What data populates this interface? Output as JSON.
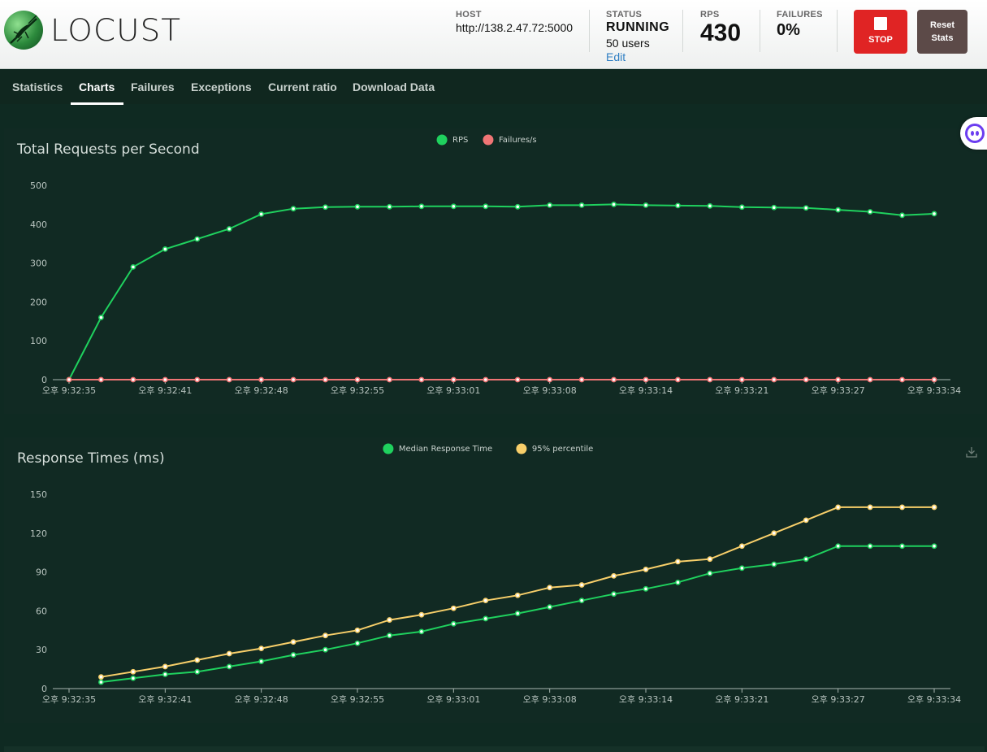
{
  "app": {
    "name": "LOCUST"
  },
  "header": {
    "host": {
      "label": "HOST",
      "value": "http://138.2.47.72:5000"
    },
    "status": {
      "label": "STATUS",
      "value": "RUNNING",
      "users": "50 users",
      "edit": "Edit"
    },
    "rps": {
      "label": "RPS",
      "value": "430"
    },
    "failures": {
      "label": "FAILURES",
      "value": "0%"
    },
    "stop_label": "STOP",
    "reset_label_1": "Reset",
    "reset_label_2": "Stats"
  },
  "tabs": [
    {
      "label": "Statistics",
      "active": false
    },
    {
      "label": "Charts",
      "active": true
    },
    {
      "label": "Failures",
      "active": false
    },
    {
      "label": "Exceptions",
      "active": false
    },
    {
      "label": "Current ratio",
      "active": false
    },
    {
      "label": "Download Data",
      "active": false
    }
  ],
  "colors": {
    "green": "#1fd15e",
    "red": "#f07575",
    "yellow": "#f8cf6a",
    "stop": "#e02424",
    "reset": "#5c4a48"
  },
  "chart_data": [
    {
      "type": "line",
      "title": "Total Requests per Second",
      "x": [
        "오후 9:32:35",
        "",
        "",
        "오후 9:32:41",
        "",
        "",
        "오후 9:32:48",
        "",
        "",
        "오후 9:32:55",
        "",
        "",
        "오후 9:33:01",
        "",
        "",
        "오후 9:33:08",
        "",
        "",
        "오후 9:33:14",
        "",
        "",
        "오후 9:33:21",
        "",
        "",
        "오후 9:33:27",
        "",
        "",
        "오후 9:33:34"
      ],
      "x_ticks": [
        "오후 9:32:35",
        "오후 9:32:41",
        "오후 9:32:48",
        "오후 9:32:55",
        "오후 9:33:01",
        "오후 9:33:08",
        "오후 9:33:14",
        "오후 9:33:21",
        "오후 9:33:27",
        "오후 9:33:34"
      ],
      "series": [
        {
          "name": "RPS",
          "color": "#1fd15e",
          "values": [
            0,
            160,
            290,
            336,
            362,
            388,
            426,
            440,
            444,
            445,
            445,
            446,
            446,
            446,
            445,
            449,
            449,
            451,
            449,
            448,
            447,
            444,
            443,
            442,
            437,
            432,
            423,
            427
          ]
        },
        {
          "name": "Failures/s",
          "color": "#f07575",
          "values": [
            0,
            0,
            0,
            0,
            0,
            0,
            0,
            0,
            0,
            0,
            0,
            0,
            0,
            0,
            0,
            0,
            0,
            0,
            0,
            0,
            0,
            0,
            0,
            0,
            0,
            0,
            0,
            0
          ]
        }
      ],
      "ylim": [
        0,
        500
      ],
      "y_ticks": [
        0,
        100,
        200,
        300,
        400,
        500
      ],
      "legend": "top-center"
    },
    {
      "type": "line",
      "title": "Response Times (ms)",
      "x": [
        "오후 9:32:35",
        "",
        "",
        "오후 9:32:41",
        "",
        "",
        "오후 9:32:48",
        "",
        "",
        "오후 9:32:55",
        "",
        "",
        "오후 9:33:01",
        "",
        "",
        "오후 9:33:08",
        "",
        "",
        "오후 9:33:14",
        "",
        "",
        "오후 9:33:21",
        "",
        "",
        "오후 9:33:27",
        "",
        "",
        "오후 9:33:34"
      ],
      "x_ticks": [
        "오후 9:32:35",
        "오후 9:32:41",
        "오후 9:32:48",
        "오후 9:32:55",
        "오후 9:33:01",
        "오후 9:33:08",
        "오후 9:33:14",
        "오후 9:33:21",
        "오후 9:33:27",
        "오후 9:33:34"
      ],
      "series": [
        {
          "name": "Median Response Time",
          "color": "#1fd15e",
          "values": [
            null,
            5,
            8,
            11,
            13,
            17,
            21,
            26,
            30,
            35,
            41,
            44,
            50,
            54,
            58,
            63,
            68,
            73,
            77,
            82,
            89,
            93,
            96,
            100,
            110,
            110,
            110,
            110
          ]
        },
        {
          "name": "95% percentile",
          "color": "#f8cf6a",
          "values": [
            null,
            9,
            13,
            17,
            22,
            27,
            31,
            36,
            41,
            45,
            53,
            57,
            62,
            68,
            72,
            78,
            80,
            87,
            92,
            98,
            100,
            110,
            120,
            130,
            140,
            140,
            140,
            140
          ]
        }
      ],
      "ylim": [
        0,
        150
      ],
      "y_ticks": [
        0,
        30,
        60,
        90,
        120,
        150
      ],
      "legend": "top-center"
    }
  ]
}
